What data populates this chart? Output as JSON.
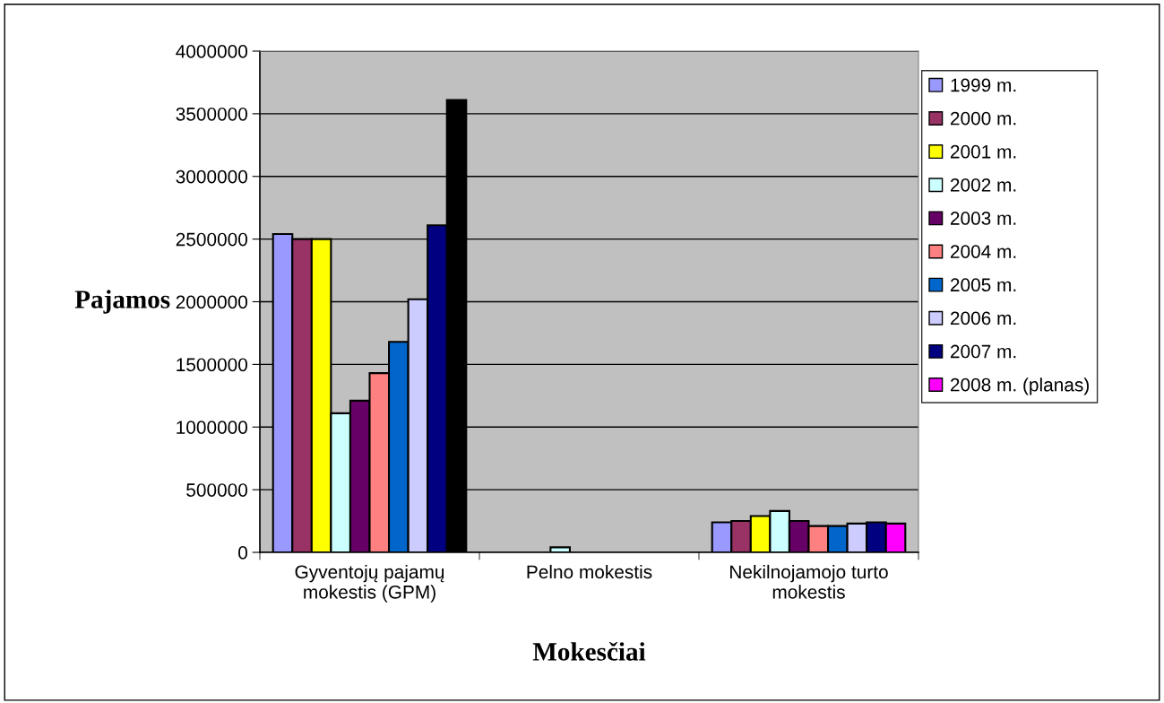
{
  "chart_data": {
    "type": "bar",
    "xlabel": "Mokesčiai",
    "ylabel": "Pajamos",
    "categories": [
      "Gyventojų pajamų\nmokestis (GPM)",
      "Pelno mokestis",
      "Nekilnojamojo turto\nmokestis"
    ],
    "series": [
      {
        "name": "1999 m.",
        "color": "#9999ff",
        "values": [
          2540000,
          null,
          240000
        ]
      },
      {
        "name": "2000 m.",
        "color": "#993366",
        "values": [
          2500000,
          null,
          250000
        ]
      },
      {
        "name": "2001 m.",
        "color": "#ffff00",
        "values": [
          2500000,
          null,
          290000
        ]
      },
      {
        "name": "2002 m.",
        "color": "#ccffff",
        "values": [
          1110000,
          40000,
          330000
        ]
      },
      {
        "name": "2003 m.",
        "color": "#660066",
        "values": [
          1210000,
          null,
          250000
        ]
      },
      {
        "name": "2004 m.",
        "color": "#ff8080",
        "values": [
          1430000,
          null,
          210000
        ]
      },
      {
        "name": "2005 m.",
        "color": "#0066cc",
        "values": [
          1680000,
          null,
          210000
        ]
      },
      {
        "name": "2006 m.",
        "color": "#ccccff",
        "values": [
          2020000,
          null,
          230000
        ]
      },
      {
        "name": "2007 m.",
        "color": "#000080",
        "values": [
          2610000,
          null,
          240000
        ]
      },
      {
        "name": "2008 m. (planas)",
        "color": "#ff00ff",
        "colors": [
          "#000000",
          "#ff00ff",
          "#ff00ff"
        ],
        "values": [
          3610000,
          null,
          230000
        ]
      }
    ],
    "ylim": [
      0,
      4000000
    ],
    "yticks": [
      0,
      500000,
      1000000,
      1500000,
      2000000,
      2500000,
      3000000,
      3500000,
      4000000
    ],
    "grid": "y",
    "legend": "right"
  }
}
